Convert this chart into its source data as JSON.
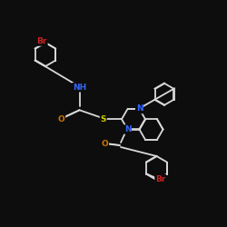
{
  "background": "#0d0d0d",
  "bond_color": "#d8d8d8",
  "atom_colors": {
    "N": "#3366ff",
    "O": "#cc7700",
    "S": "#cccc00",
    "Br": "#cc2222",
    "C": "#d8d8d8"
  },
  "figsize": [
    2.5,
    2.5
  ],
  "dpi": 100
}
